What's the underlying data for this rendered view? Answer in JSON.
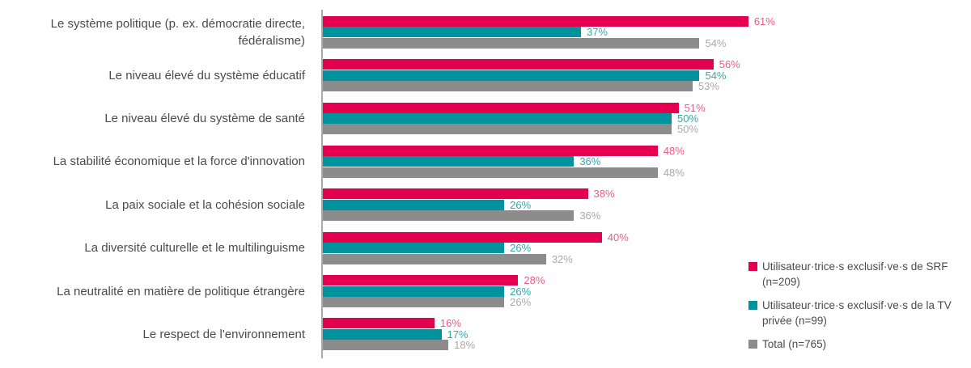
{
  "figure": {
    "background": "#FFFFFF",
    "axis_color": "#A9A9A9",
    "category_label_color": "#4B4B4D"
  },
  "chart_data": {
    "type": "bar",
    "orientation": "horizontal",
    "title": "",
    "xlabel": "",
    "ylabel": "",
    "grid": false,
    "legend_position": "right",
    "value_suffix": "%",
    "xlim": [
      0,
      100
    ],
    "value_labels": true,
    "categories": [
      "Le système politique (p. ex. démocratie directe, fédéralisme)",
      "Le niveau élevé du système éducatif",
      "Le niveau élevé du système de santé",
      "La stabilité économique et la force d'innovation",
      "La paix sociale et la cohésion sociale",
      "La diversité culturelle et le multilinguisme",
      "La neutralité en matière de politique étrangère",
      "Le respect de l'environnement"
    ],
    "series": [
      {
        "name": "Utilisateur·trice·s exclusif·ve·s de SRF (n=209)",
        "color": "#E2004F",
        "label_color": "#EC5A87",
        "values": [
          61,
          56,
          51,
          48,
          38,
          40,
          28,
          16
        ]
      },
      {
        "name": "Utilisateur·trice·s exclusif·ve·s de la TV privée (n=99)",
        "color": "#00929D",
        "label_color": "#33A7B1",
        "values": [
          37,
          54,
          50,
          36,
          26,
          26,
          26,
          17
        ]
      },
      {
        "name": "Total (n=765)",
        "color": "#8C8C8C",
        "label_color": "#A9A9A9",
        "values": [
          54,
          53,
          50,
          48,
          36,
          32,
          26,
          18
        ]
      }
    ]
  }
}
